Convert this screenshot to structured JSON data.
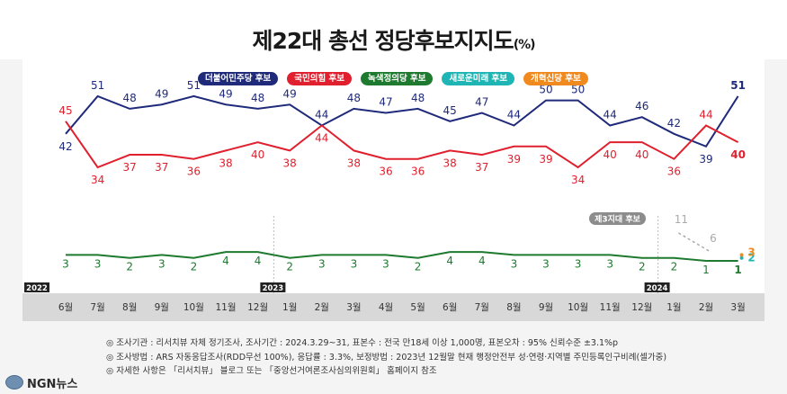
{
  "title": "제22대 총선 정당후보지지도",
  "title_unit": "(%)",
  "chart_data": {
    "type": "line",
    "categories": [
      "6월",
      "7월",
      "8월",
      "9월",
      "10월",
      "11월",
      "12월",
      "1월",
      "2월",
      "3월",
      "4월",
      "5월",
      "6월",
      "7월",
      "8월",
      "9월",
      "10월",
      "11월",
      "12월",
      "1월",
      "2월",
      "3월"
    ],
    "year_markers": [
      {
        "label": "2022",
        "index": 0
      },
      {
        "label": "2023",
        "index": 7
      },
      {
        "label": "2024",
        "index": 19
      }
    ],
    "series": [
      {
        "name": "더불어민주당 후보",
        "color": "#1f2a7a",
        "values": [
          42,
          51,
          48,
          49,
          51,
          49,
          48,
          49,
          44,
          48,
          47,
          48,
          45,
          47,
          44,
          50,
          50,
          44,
          46,
          42,
          39,
          51
        ]
      },
      {
        "name": "국민의힘 후보",
        "color": "#e0202e",
        "values": [
          45,
          34,
          37,
          37,
          36,
          38,
          40,
          38,
          44,
          38,
          36,
          36,
          38,
          37,
          39,
          39,
          34,
          40,
          40,
          36,
          44,
          40
        ]
      },
      {
        "name": "녹색정의당 후보",
        "color": "#1e7a2e",
        "values": [
          3,
          3,
          2,
          3,
          2,
          4,
          4,
          2,
          3,
          3,
          3,
          2,
          4,
          4,
          3,
          3,
          3,
          3,
          2,
          2,
          1,
          1
        ]
      },
      {
        "name": "새로운미래 후보",
        "color": "#1fb5b5",
        "values": [
          null,
          null,
          null,
          null,
          null,
          null,
          null,
          null,
          null,
          null,
          null,
          null,
          null,
          null,
          null,
          null,
          null,
          null,
          null,
          null,
          null,
          2
        ]
      },
      {
        "name": "개혁신당 후보",
        "color": "#f08a1e",
        "values": [
          null,
          null,
          null,
          null,
          null,
          null,
          null,
          null,
          null,
          null,
          null,
          null,
          null,
          null,
          null,
          null,
          null,
          null,
          null,
          null,
          null,
          3
        ]
      }
    ],
    "third_party": {
      "label": "제3지대 후보",
      "color": "#aaaaaa",
      "values": [
        {
          "index": 19,
          "value": 11
        },
        {
          "index": 20,
          "value": 6
        }
      ]
    },
    "legend_placement": "top-center",
    "grid": false
  },
  "notes": [
    "◎ 조사기관 : 리서치뷰 자체 정기조사, 조사기간 : 2024.3.29~31, 표본수 : 전국 만18세 이상 1,000명, 표본오차 : 95% 신뢰수준 ±3.1%p",
    "◎ 조사방법 : ARS 자동응답조사(RDD무선 100%), 응답률 : 3.3%, 보정방법 : 2023년 12월말 현재 행정안전부 성·연령·지역별 주민등록인구비례(셀가중)",
    "◎ 자세한 사항은 「리서치뷰」 블로그 또는 「중앙선거여론조사심의위원회」 홈페이지 참조"
  ],
  "logo_text": "NGN뉴스"
}
